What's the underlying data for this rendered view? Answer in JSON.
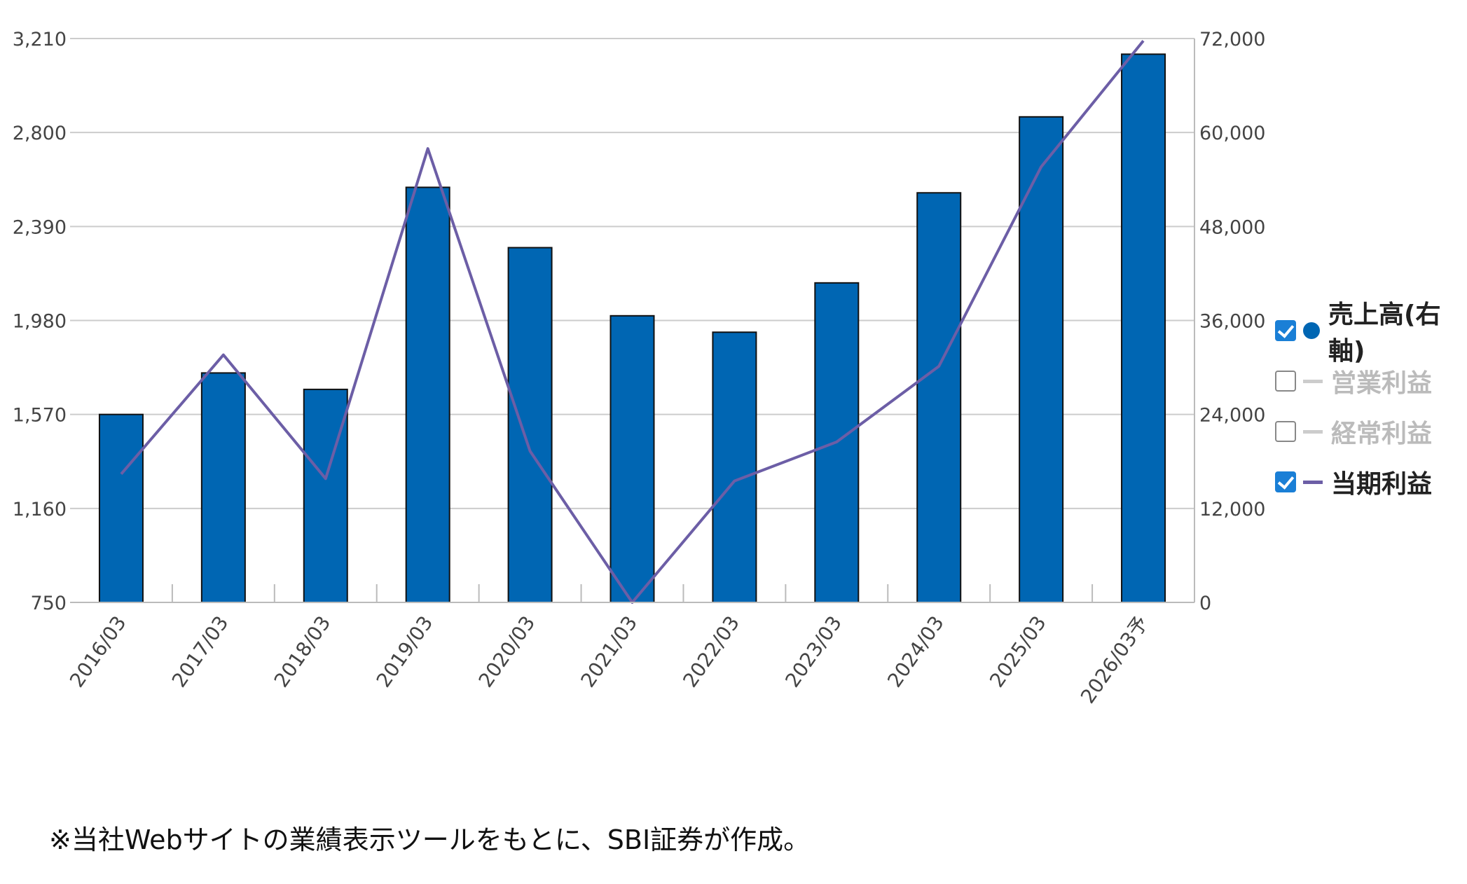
{
  "chart_data": {
    "type": "bar",
    "categories": [
      "2016/03",
      "2017/03",
      "2018/03",
      "2019/03",
      "2020/03",
      "2021/03",
      "2022/03",
      "2023/03",
      "2024/03",
      "2025/03",
      "2026/03予"
    ],
    "series": [
      {
        "name": "売上高(右軸)",
        "type": "bar",
        "axis": "right",
        "color": "#0066b3",
        "values": [
          24000,
          29300,
          27200,
          53000,
          45300,
          36600,
          34500,
          40800,
          52300,
          62000,
          70000
        ]
      },
      {
        "name": "当期利益",
        "type": "line",
        "axis": "left",
        "color": "#6c5ea6",
        "values": [
          1310,
          1830,
          1290,
          2730,
          1410,
          750,
          1280,
          1450,
          1780,
          2650,
          3200
        ]
      }
    ],
    "left_axis": {
      "ticks": [
        "3,210",
        "2,800",
        "2,390",
        "1,980",
        "1,570",
        "1,160",
        "750"
      ],
      "min": 750,
      "max": 3210
    },
    "right_axis": {
      "ticks": [
        "72,000",
        "60,000",
        "48,000",
        "36,000",
        "24,000",
        "12,000",
        "0"
      ],
      "min": 0,
      "max": 72000
    },
    "grid": true,
    "legend_position": "right"
  },
  "legend": {
    "items": [
      {
        "label": "売上高(右軸)",
        "checked": true,
        "marker": "dot",
        "color": "#0066b3"
      },
      {
        "label": "営業利益",
        "checked": false,
        "marker": "line",
        "color": "#cccccc"
      },
      {
        "label": "経常利益",
        "checked": false,
        "marker": "line",
        "color": "#cccccc"
      },
      {
        "label": "当期利益",
        "checked": true,
        "marker": "line",
        "color": "#6c5ea6"
      }
    ]
  },
  "footnote": "※当社Webサイトの業績表示ツールをもとに、SBI証券が作成。"
}
